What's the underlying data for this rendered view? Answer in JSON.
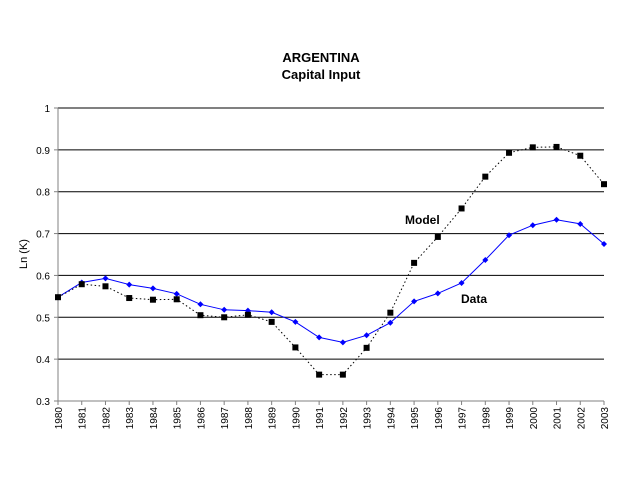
{
  "chart_data": {
    "type": "line",
    "title": "ARGENTINA",
    "subtitle": "Capital Input",
    "xlabel": "",
    "ylabel": "Ln (K)",
    "ylim": [
      0.3,
      1
    ],
    "yticks": [
      "0.3",
      "0.4",
      "0.5",
      "0.6",
      "0.7",
      "0.8",
      "0.9",
      "1"
    ],
    "grid": true,
    "legend": "none",
    "categories": [
      "1980",
      "1981",
      "1982",
      "1983",
      "1984",
      "1985",
      "1986",
      "1987",
      "1988",
      "1989",
      "1990",
      "1991",
      "1992",
      "1993",
      "1994",
      "1995",
      "1996",
      "1997",
      "1998",
      "1999",
      "2000",
      "2001",
      "2002",
      "2003"
    ],
    "series": [
      {
        "name": "Data",
        "color": "#0000ff",
        "style": "solid",
        "marker": "diamond",
        "values": [
          0.548,
          0.583,
          0.593,
          0.578,
          0.569,
          0.556,
          0.531,
          0.518,
          0.516,
          0.512,
          0.489,
          0.452,
          0.44,
          0.457,
          0.487,
          0.538,
          0.557,
          0.582,
          0.637,
          0.696,
          0.72,
          0.733,
          0.723,
          0.675
        ]
      },
      {
        "name": "Model",
        "color": "#000000",
        "style": "dotted",
        "marker": "square",
        "values": [
          0.548,
          0.579,
          0.574,
          0.546,
          0.542,
          0.543,
          0.505,
          0.5,
          0.506,
          0.489,
          0.428,
          0.363,
          0.363,
          0.427,
          0.511,
          0.63,
          0.692,
          0.76,
          0.836,
          0.893,
          0.906,
          0.907,
          0.886,
          0.818
        ]
      }
    ],
    "annotations": [
      {
        "text": "Model",
        "series": "Model",
        "at": "1995"
      },
      {
        "text": "Data",
        "series": "Data",
        "at": "1997"
      }
    ]
  }
}
